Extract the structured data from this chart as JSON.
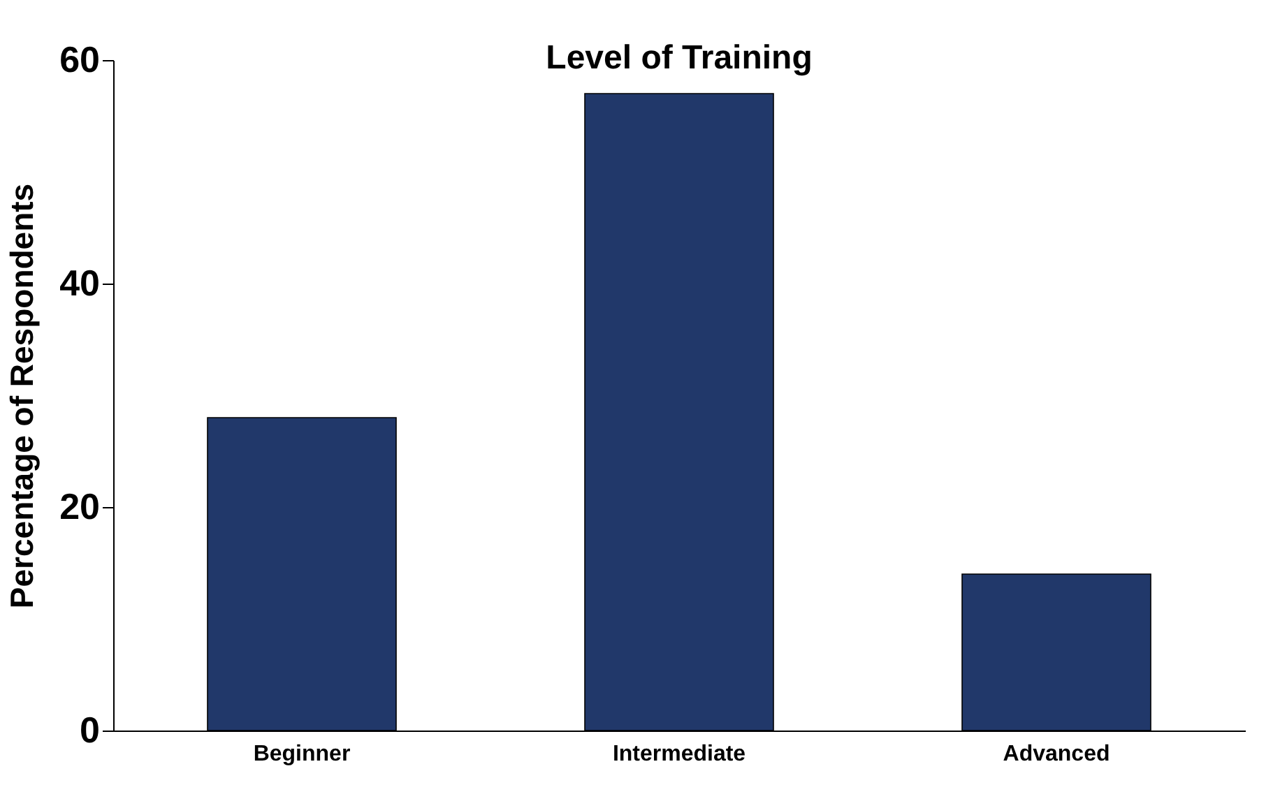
{
  "chart_data": {
    "type": "bar",
    "title": "Level of Training",
    "ylabel": "Percentage of Respondents",
    "categories": [
      "Beginner",
      "Intermediate",
      "Advanced"
    ],
    "values": [
      28,
      57,
      14
    ],
    "color": "#21386a",
    "ylim": [
      0,
      60
    ],
    "yticks": [
      0,
      20,
      40,
      60
    ],
    "grid": false
  }
}
